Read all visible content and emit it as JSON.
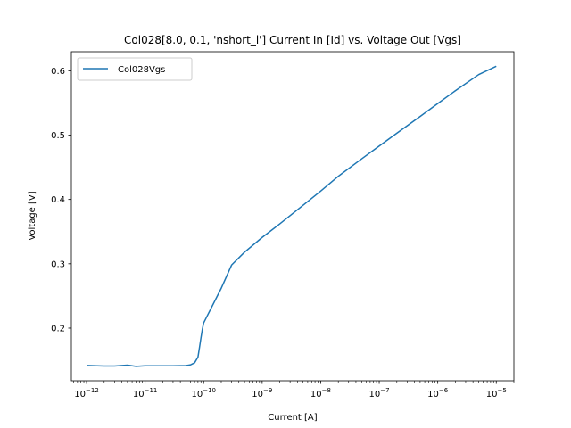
{
  "chart_data": {
    "type": "line",
    "title": "Col028[8.0, 0.1, 'nshort_l'] Current In [Id] vs. Voltage Out [Vgs]",
    "xlabel": "Current [A]",
    "ylabel": "Voltage [V]",
    "xscale": "log",
    "xlim": [
      5.5e-13,
      2e-05
    ],
    "ylim": [
      0.1182,
      0.6296
    ],
    "x_major_ticks": [
      {
        "value": 1e-12,
        "mantissa": "10",
        "exp": "−12"
      },
      {
        "value": 1e-11,
        "mantissa": "10",
        "exp": "−11"
      },
      {
        "value": 1e-10,
        "mantissa": "10",
        "exp": "−10"
      },
      {
        "value": 1e-09,
        "mantissa": "10",
        "exp": "−9"
      },
      {
        "value": 1e-08,
        "mantissa": "10",
        "exp": "−8"
      },
      {
        "value": 1e-07,
        "mantissa": "10",
        "exp": "−7"
      },
      {
        "value": 1e-06,
        "mantissa": "10",
        "exp": "−6"
      },
      {
        "value": 1e-05,
        "mantissa": "10",
        "exp": "−5"
      }
    ],
    "y_ticks": [
      {
        "value": 0.2,
        "label": "0.2"
      },
      {
        "value": 0.3,
        "label": "0.3"
      },
      {
        "value": 0.4,
        "label": "0.4"
      },
      {
        "value": 0.5,
        "label": "0.5"
      },
      {
        "value": 0.6,
        "label": "0.6"
      }
    ],
    "grid": false,
    "legend_position": "upper-left",
    "series": [
      {
        "name": "Col028Vgs",
        "color": "#1f77b4",
        "x": [
          1e-12,
          2e-12,
          3e-12,
          5e-12,
          7e-12,
          1e-11,
          2e-11,
          3e-11,
          5e-11,
          6e-11,
          7e-11,
          8e-11,
          8.5e-11,
          9e-11,
          9.5e-11,
          1e-10,
          2e-10,
          3e-10,
          5e-10,
          1e-09,
          2e-09,
          5e-09,
          1e-08,
          2e-08,
          5e-08,
          1e-07,
          2e-07,
          5e-07,
          1e-06,
          2e-06,
          5e-06,
          1e-05
        ],
        "y": [
          0.142,
          0.141,
          0.141,
          0.1425,
          0.1405,
          0.1415,
          0.1415,
          0.1415,
          0.1418,
          0.143,
          0.146,
          0.155,
          0.17,
          0.185,
          0.198,
          0.208,
          0.262,
          0.298,
          0.318,
          0.341,
          0.362,
          0.391,
          0.413,
          0.436,
          0.463,
          0.483,
          0.503,
          0.529,
          0.549,
          0.569,
          0.594,
          0.607
        ]
      }
    ]
  }
}
